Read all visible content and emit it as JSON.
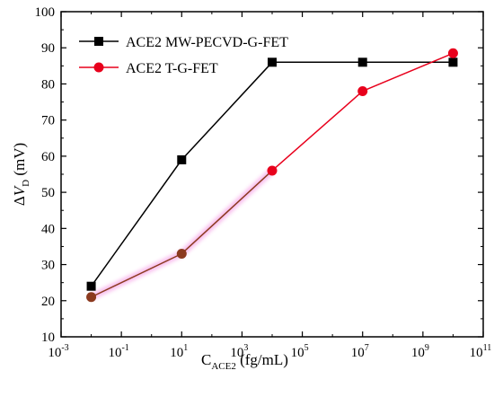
{
  "chart_data": {
    "type": "line",
    "title": "",
    "xlabel": {
      "base": "C",
      "sub": "ACE2",
      "suffix": " (fg/mL)"
    },
    "ylabel": {
      "prefix": "Δ",
      "var": "V",
      "sub": "D",
      "suffix": " (mV)"
    },
    "x_scale": "log10",
    "xlim": [
      0.001,
      100000000000
    ],
    "ylim": [
      10,
      100
    ],
    "x_ticks": [
      {
        "exp": "-3",
        "value": 0.001
      },
      {
        "exp": "-1",
        "value": 0.1
      },
      {
        "exp": "1",
        "value": 10
      },
      {
        "exp": "3",
        "value": 1000
      },
      {
        "exp": "5",
        "value": 100000
      },
      {
        "exp": "7",
        "value": 10000000
      },
      {
        "exp": "9",
        "value": 1000000000
      },
      {
        "exp": "11",
        "value": 100000000000
      }
    ],
    "y_ticks": [
      "10",
      "20",
      "30",
      "40",
      "50",
      "60",
      "70",
      "80",
      "90",
      "100"
    ],
    "legend_position": "top-left",
    "grid": false,
    "series": [
      {
        "name": "ACE2 MW-PECVD-G-FET",
        "color": "#000000",
        "marker": "square",
        "x": [
          0.01,
          10,
          10000,
          10000000,
          10000000000
        ],
        "y": [
          24,
          59,
          86,
          86,
          86
        ]
      },
      {
        "name": "ACE2 T-G-FET",
        "color": "#e8001c",
        "early_segment_color": "#8b3a1f",
        "marker": "circle",
        "x": [
          0.01,
          10,
          10000,
          10000000,
          10000000000
        ],
        "y": [
          21,
          33,
          56,
          78,
          88.5
        ]
      }
    ]
  }
}
